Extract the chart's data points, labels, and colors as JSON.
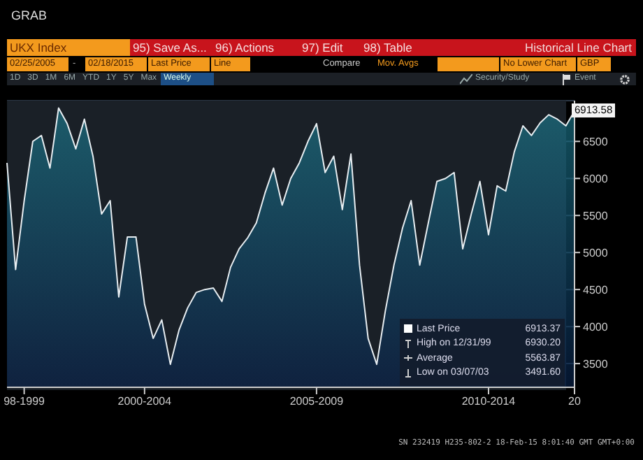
{
  "chart_data": {
    "type": "area",
    "title": "GRAB",
    "subtitle": "Historical Line Chart",
    "categories": [
      null,
      null,
      "98-1999",
      null,
      null,
      null,
      null,
      null,
      null,
      null,
      null,
      null,
      null,
      null,
      null,
      null,
      "2000-2004",
      null,
      null,
      null,
      null,
      null,
      null,
      null,
      null,
      null,
      null,
      null,
      null,
      null,
      null,
      null,
      null,
      null,
      null,
      null,
      "2005-2009",
      null,
      null,
      null,
      null,
      null,
      null,
      null,
      null,
      null,
      null,
      null,
      null,
      null,
      null,
      null,
      null,
      null,
      null,
      null,
      "2010-2014",
      null,
      null,
      null,
      null,
      null,
      null,
      null,
      null,
      null,
      "20"
    ],
    "series": [
      {
        "color": "#e8eef2",
        "values": [
          6210,
          4770,
          5700,
          6500,
          6580,
          6140,
          6950,
          6740,
          6400,
          6800,
          6300,
          5520,
          5700,
          4400,
          5210,
          5210,
          4300,
          3840,
          4090,
          3490,
          3950,
          4250,
          4460,
          4500,
          4520,
          4340,
          4800,
          5050,
          5200,
          5400,
          5800,
          6140,
          5640,
          6000,
          6210,
          6500,
          6740,
          6080,
          6300,
          5580,
          6330,
          4830,
          3840,
          3490,
          4210,
          4830,
          5330,
          5700,
          4830,
          5400,
          5960,
          6000,
          6080,
          5050,
          5520,
          5960,
          5240,
          5900,
          5830,
          6360,
          6710,
          6580,
          6750,
          6860,
          6800,
          6710,
          6910
        ]
      }
    ],
    "ylim": [
      3180,
      7050
    ],
    "yticks": [
      3500,
      4000,
      4500,
      5000,
      5500,
      6000,
      6500
    ],
    "grid": "y",
    "annotations": [
      "UKX Index",
      "95) Save As...",
      "96) Actions",
      "97) Edit",
      "98) Table",
      "02/25/2005",
      "-",
      "02/18/2015",
      "Last Price",
      "Line",
      "Compare",
      "Mov. Avgs",
      "No Lower Chart",
      "GBP",
      "1D",
      "3D",
      "1M",
      "6M",
      "YTD",
      "1Y",
      "5Y",
      "Max",
      "Weekly",
      "Security/Study",
      "Event",
      "Last Price",
      "6913.37",
      "High on 12/31/99",
      "6930.20",
      "Average",
      "5563.87",
      "Low on 03/07/03",
      "3491.60",
      "6913.58",
      "SN 232419 H235-802-2 18-Feb-15 8:01:40 GMT GMT+0:00"
    ]
  }
}
